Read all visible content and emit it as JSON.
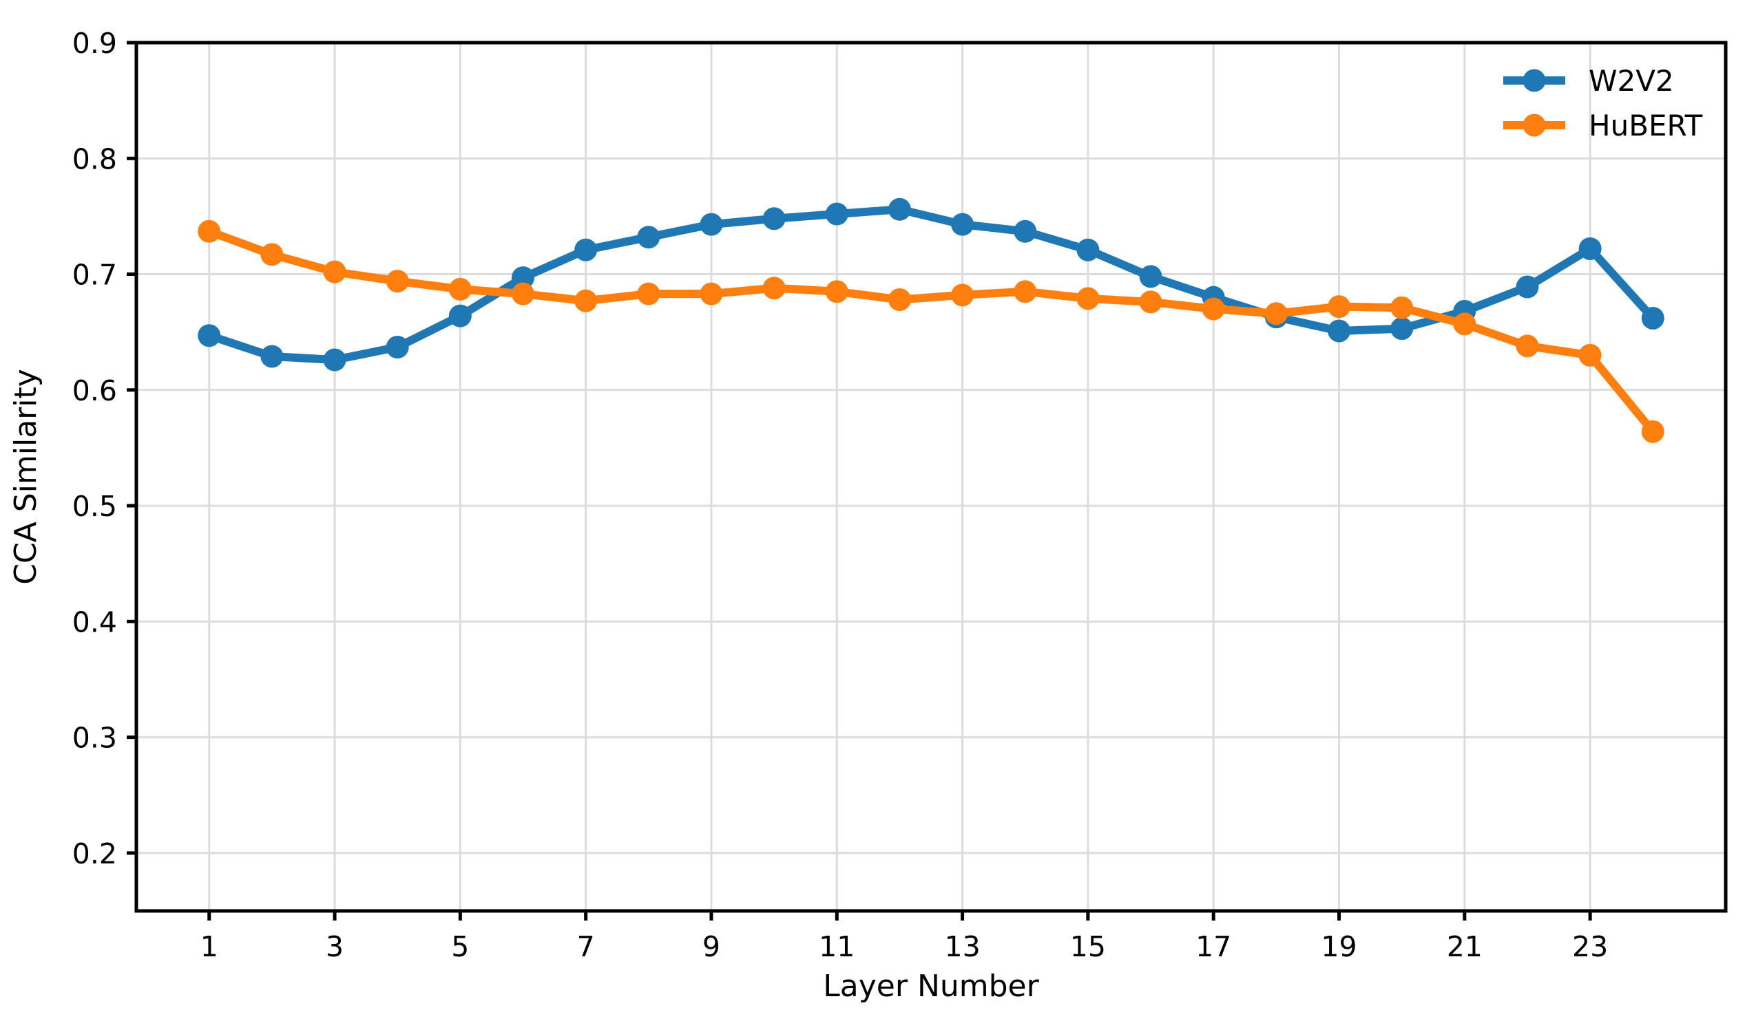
{
  "chart_data": {
    "type": "line",
    "title": "",
    "xlabel": "Layer Number",
    "ylabel": "CCA Similarity",
    "x": [
      1,
      2,
      3,
      4,
      5,
      6,
      7,
      8,
      9,
      10,
      11,
      12,
      13,
      14,
      15,
      16,
      17,
      18,
      19,
      20,
      21,
      22,
      23,
      24
    ],
    "series": [
      {
        "name": "W2V2",
        "color": "#1f77b4",
        "values": [
          0.647,
          0.629,
          0.626,
          0.637,
          0.664,
          0.697,
          0.721,
          0.732,
          0.743,
          0.748,
          0.752,
          0.756,
          0.743,
          0.737,
          0.721,
          0.698,
          0.68,
          0.663,
          0.651,
          0.653,
          0.668,
          0.689,
          0.722,
          0.662
        ]
      },
      {
        "name": "HuBERT",
        "color": "#ff7f0e",
        "values": [
          0.737,
          0.717,
          0.702,
          0.694,
          0.687,
          0.683,
          0.677,
          0.683,
          0.683,
          0.688,
          0.685,
          0.678,
          0.682,
          0.685,
          0.679,
          0.676,
          0.67,
          0.666,
          0.672,
          0.671,
          0.657,
          0.638,
          0.63,
          0.564
        ]
      }
    ],
    "xticks": [
      1,
      3,
      5,
      7,
      9,
      11,
      13,
      15,
      17,
      19,
      21,
      23
    ],
    "xtick_labels": [
      "1",
      "3",
      "5",
      "7",
      "9",
      "11",
      "13",
      "15",
      "17",
      "19",
      "21",
      "23"
    ],
    "yticks": [
      0.2,
      0.3,
      0.4,
      0.5,
      0.6,
      0.7,
      0.8,
      0.9
    ],
    "ytick_labels": [
      "0.2",
      "0.3",
      "0.4",
      "0.5",
      "0.6",
      "0.7",
      "0.8",
      "0.9"
    ],
    "xlim": [
      -0.16,
      25.16
    ],
    "ylim": [
      0.15,
      0.9
    ],
    "grid": true,
    "grid_color": "#dcdcdc",
    "axis_color": "#000000",
    "background": "#ffffff",
    "legend_position": "upper right",
    "legend_frame": false
  }
}
